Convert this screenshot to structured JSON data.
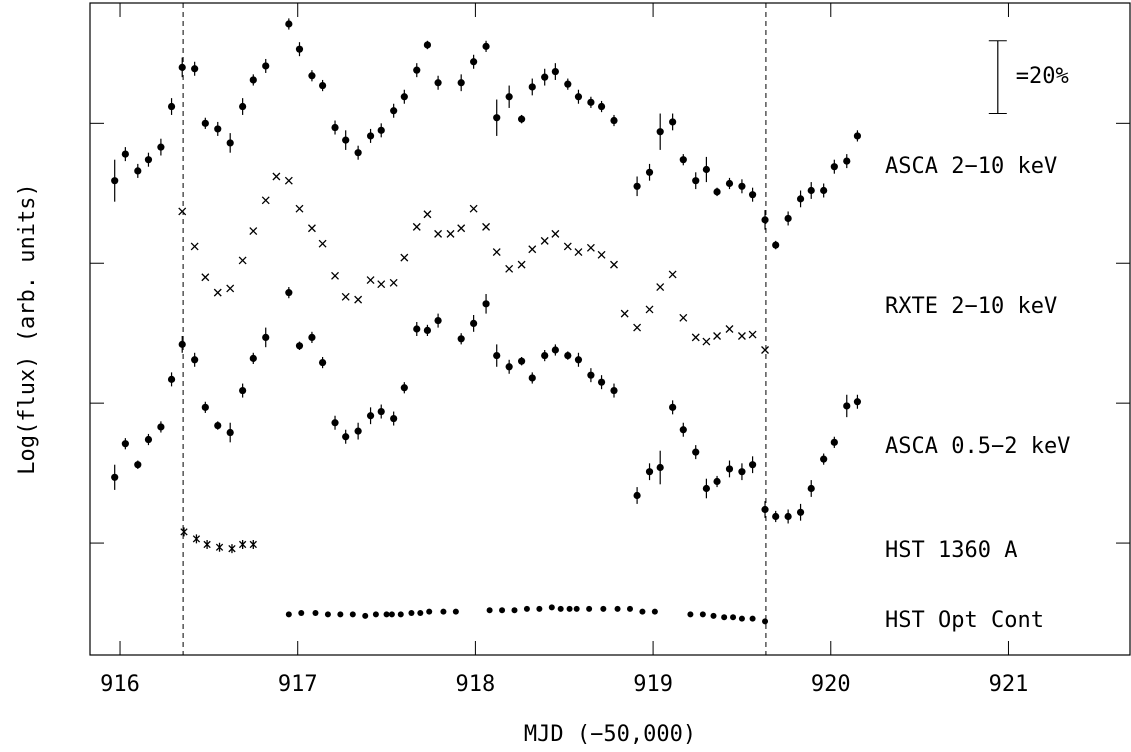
{
  "chart_data": {
    "type": "scatter",
    "x_label": "MJD (−50,000)",
    "y_label": "Log(flux) (arb. units)",
    "xlim": [
      915.831,
      921.684
    ],
    "ylim": [
      0.2,
      4.86
    ],
    "xticks": [
      916,
      917,
      918,
      919,
      920,
      921
    ],
    "yticks": [
      1,
      2,
      3,
      4
    ],
    "vlines": [
      916.355,
      919.635
    ],
    "scale_bar": {
      "label": "=20%",
      "x": 920.94,
      "range": [
        4.07,
        4.59
      ]
    },
    "series": [
      {
        "name": "ASCA 2−10 keV",
        "marker": "dot",
        "color": "#000000",
        "x": [
          915.97,
          916.03,
          916.1,
          916.16,
          916.23,
          916.29,
          916.35,
          916.42,
          916.48,
          916.55,
          916.62,
          916.69,
          916.75,
          916.82,
          916.95,
          917.01,
          917.08,
          917.14,
          917.21,
          917.27,
          917.34,
          917.41,
          917.47,
          917.54,
          917.6,
          917.67,
          917.73,
          917.79,
          917.92,
          917.99,
          918.06,
          918.12,
          918.19,
          918.26,
          918.32,
          918.39,
          918.45,
          918.52,
          918.58,
          918.65,
          918.71,
          918.78,
          918.91,
          918.98,
          919.04,
          919.11,
          919.17,
          919.24,
          919.3,
          919.36,
          919.43,
          919.5,
          919.56,
          919.63,
          919.69,
          919.76,
          919.83,
          919.89,
          919.96,
          920.02,
          920.09,
          920.15
        ],
        "values": [
          3.59,
          3.78,
          3.66,
          3.74,
          3.83,
          4.12,
          4.4,
          4.39,
          4.0,
          3.96,
          3.86,
          4.12,
          4.31,
          4.41,
          4.71,
          4.53,
          4.34,
          4.27,
          3.97,
          3.88,
          3.79,
          3.91,
          3.95,
          4.09,
          4.19,
          4.38,
          4.56,
          4.29,
          4.29,
          4.44,
          4.55,
          4.04,
          4.19,
          4.03,
          4.26,
          4.33,
          4.37,
          4.28,
          4.19,
          4.15,
          4.12,
          4.02,
          3.55,
          3.65,
          3.94,
          4.01,
          3.74,
          3.59,
          3.67,
          3.51,
          3.57,
          3.55,
          3.49,
          3.31,
          3.13,
          3.32,
          3.46,
          3.52,
          3.52,
          3.69,
          3.73,
          3.91
        ],
        "errors": [
          0.15,
          0.05,
          0.05,
          0.05,
          0.06,
          0.06,
          0.07,
          0.05,
          0.04,
          0.05,
          0.07,
          0.06,
          0.04,
          0.05,
          0.04,
          0.05,
          0.04,
          0.04,
          0.05,
          0.07,
          0.05,
          0.05,
          0.05,
          0.05,
          0.05,
          0.05,
          0.03,
          0.05,
          0.06,
          0.05,
          0.04,
          0.13,
          0.08,
          0.03,
          0.06,
          0.06,
          0.06,
          0.04,
          0.05,
          0.04,
          0.04,
          0.04,
          0.07,
          0.06,
          0.13,
          0.06,
          0.04,
          0.06,
          0.09,
          0.03,
          0.04,
          0.05,
          0.05,
          0.07,
          0.03,
          0.05,
          0.06,
          0.06,
          0.05,
          0.05,
          0.05,
          0.04
        ]
      },
      {
        "name": "RXTE 2−10 keV",
        "marker": "x",
        "color": "#000000",
        "x": [
          916.35,
          916.42,
          916.48,
          916.55,
          916.62,
          916.69,
          916.75,
          916.82,
          916.88,
          916.95,
          917.01,
          917.08,
          917.14,
          917.21,
          917.27,
          917.34,
          917.41,
          917.47,
          917.54,
          917.6,
          917.67,
          917.73,
          917.79,
          917.86,
          917.92,
          917.99,
          918.06,
          918.12,
          918.19,
          918.26,
          918.32,
          918.39,
          918.45,
          918.52,
          918.58,
          918.65,
          918.71,
          918.78,
          918.84,
          918.91,
          918.98,
          919.04,
          919.11,
          919.17,
          919.24,
          919.3,
          919.36,
          919.43,
          919.5,
          919.56,
          919.63
        ],
        "values": [
          3.37,
          3.12,
          2.9,
          2.79,
          2.82,
          3.02,
          3.23,
          3.45,
          3.62,
          3.59,
          3.39,
          3.25,
          3.14,
          2.91,
          2.76,
          2.74,
          2.88,
          2.85,
          2.86,
          3.04,
          3.26,
          3.35,
          3.21,
          3.21,
          3.25,
          3.39,
          3.26,
          3.08,
          2.96,
          2.99,
          3.1,
          3.16,
          3.21,
          3.12,
          3.08,
          3.11,
          3.06,
          2.99,
          2.64,
          2.54,
          2.67,
          2.83,
          2.92,
          2.61,
          2.47,
          2.44,
          2.48,
          2.53,
          2.48,
          2.49,
          2.38
        ]
      },
      {
        "name": "ASCA 0.5−2 keV",
        "marker": "dot",
        "color": "#000000",
        "x": [
          915.97,
          916.03,
          916.1,
          916.16,
          916.23,
          916.29,
          916.35,
          916.42,
          916.48,
          916.55,
          916.62,
          916.69,
          916.75,
          916.82,
          916.95,
          917.01,
          917.08,
          917.14,
          917.21,
          917.27,
          917.34,
          917.41,
          917.47,
          917.54,
          917.6,
          917.67,
          917.73,
          917.79,
          917.92,
          917.99,
          918.06,
          918.12,
          918.19,
          918.26,
          918.32,
          918.39,
          918.45,
          918.52,
          918.58,
          918.65,
          918.71,
          918.78,
          918.91,
          918.98,
          919.04,
          919.11,
          919.17,
          919.24,
          919.3,
          919.36,
          919.43,
          919.5,
          919.56,
          919.63,
          919.69,
          919.76,
          919.83,
          919.89,
          919.96,
          920.02,
          920.09,
          920.15
        ],
        "values": [
          1.47,
          1.71,
          1.56,
          1.74,
          1.83,
          2.17,
          2.42,
          2.31,
          1.97,
          1.84,
          1.79,
          2.09,
          2.32,
          2.47,
          2.79,
          2.41,
          2.47,
          2.29,
          1.86,
          1.76,
          1.8,
          1.91,
          1.94,
          1.89,
          2.11,
          2.53,
          2.52,
          2.59,
          2.46,
          2.57,
          2.71,
          2.34,
          2.26,
          2.3,
          2.18,
          2.34,
          2.38,
          2.34,
          2.31,
          2.2,
          2.15,
          2.09,
          1.34,
          1.51,
          1.54,
          1.97,
          1.81,
          1.65,
          1.39,
          1.44,
          1.53,
          1.51,
          1.56,
          1.24,
          1.19,
          1.19,
          1.22,
          1.39,
          1.6,
          1.72,
          1.98,
          2.01
        ],
        "errors": [
          0.09,
          0.04,
          0.03,
          0.04,
          0.04,
          0.05,
          0.06,
          0.05,
          0.04,
          0.03,
          0.07,
          0.05,
          0.04,
          0.07,
          0.04,
          0.03,
          0.04,
          0.04,
          0.05,
          0.05,
          0.06,
          0.06,
          0.05,
          0.05,
          0.04,
          0.05,
          0.04,
          0.05,
          0.04,
          0.06,
          0.07,
          0.08,
          0.05,
          0.03,
          0.04,
          0.04,
          0.04,
          0.03,
          0.05,
          0.05,
          0.05,
          0.05,
          0.06,
          0.06,
          0.12,
          0.05,
          0.05,
          0.05,
          0.07,
          0.04,
          0.06,
          0.06,
          0.06,
          0.06,
          0.04,
          0.05,
          0.06,
          0.06,
          0.04,
          0.04,
          0.08,
          0.05
        ]
      },
      {
        "name": "HST 1360 A",
        "marker": "star",
        "color": "#000000",
        "x": [
          916.36,
          916.43,
          916.49,
          916.56,
          916.63,
          916.69,
          916.75
        ],
        "values": [
          1.08,
          1.03,
          0.99,
          0.97,
          0.96,
          0.99,
          0.99
        ]
      },
      {
        "name": "HST Opt Cont",
        "marker": "smalldot",
        "color": "#000000",
        "x": [
          916.95,
          917.02,
          917.1,
          917.17,
          917.24,
          917.31,
          917.38,
          917.44,
          917.5,
          917.53,
          917.58,
          917.64,
          917.69,
          917.74,
          917.82,
          917.89,
          918.08,
          918.15,
          918.22,
          918.29,
          918.36,
          918.43,
          918.48,
          918.53,
          918.57,
          918.64,
          918.72,
          918.8,
          918.87,
          918.94,
          919.01,
          919.21,
          919.28,
          919.34,
          919.4,
          919.45,
          919.5,
          919.56,
          919.63
        ],
        "values": [
          0.49,
          0.5,
          0.5,
          0.49,
          0.49,
          0.49,
          0.48,
          0.49,
          0.49,
          0.49,
          0.49,
          0.5,
          0.5,
          0.51,
          0.51,
          0.51,
          0.52,
          0.52,
          0.52,
          0.53,
          0.53,
          0.54,
          0.53,
          0.53,
          0.53,
          0.53,
          0.53,
          0.53,
          0.53,
          0.51,
          0.51,
          0.49,
          0.49,
          0.48,
          0.47,
          0.47,
          0.46,
          0.46,
          0.44
        ]
      }
    ]
  }
}
